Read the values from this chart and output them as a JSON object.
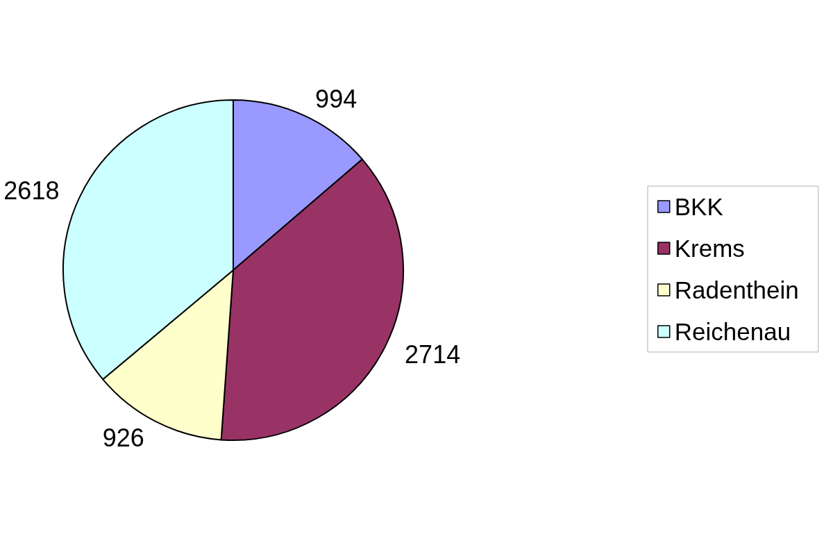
{
  "chart_data": {
    "type": "pie",
    "categories": [
      "BKK",
      "Krems",
      "Radenthein",
      "Reichenau"
    ],
    "values": [
      994,
      2714,
      926,
      2618
    ],
    "colors": [
      "#9999ff",
      "#993366",
      "#ffffcc",
      "#ccffff"
    ],
    "data_labels": true,
    "legend": "right"
  }
}
